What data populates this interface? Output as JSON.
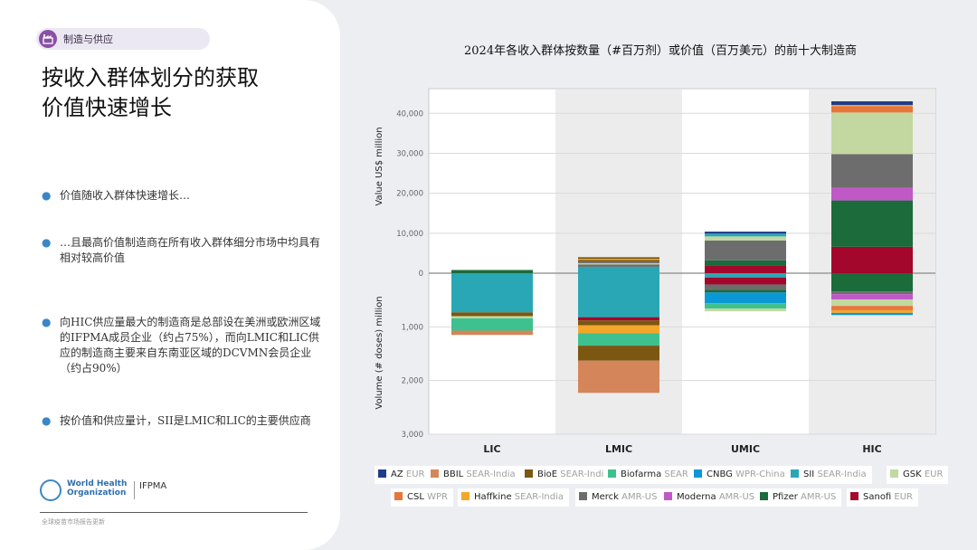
{
  "header": {
    "section_label": "制造与供应"
  },
  "title": {
    "line1": "按收入群体划分的获取",
    "line2": "价值快速增长"
  },
  "bullets": [
    "价值随收入群体快速增长…",
    "…且最高价值制造商在所有收入群体细分市场中均具有相对较高价值",
    "向HIC供应量最大的制造商是总部设在美洲或欧洲区域的IFPMA成员企业（约占75%），而向LMIC和LIC供应的制造商主要来自东南亚区域的DCVMN会员企业（约占90%）",
    "按价值和供应量计，SII是LMIC和LIC的主要供应商"
  ],
  "logos": {
    "who": "World Health Organization",
    "ifpma": "IFPMA"
  },
  "footer": {
    "text": "全球疫苗市场报告更新"
  },
  "colors": {
    "bullet_dot": "#3d86c6",
    "section_icon": "#8a4fa6",
    "zero_line": "#888888"
  },
  "chart_data": {
    "type": "bar",
    "subtype": "stacked-diverging",
    "title": "2024年各收入群体按数量（#百万剂）或价值（百万美元）的前十大制造商",
    "categories": [
      "LIC",
      "LMIC",
      "UMIC",
      "HIC"
    ],
    "value_axis": {
      "label": "Value US$ million",
      "ticks": [
        "40,000",
        "30,000",
        "20,000",
        "10,000",
        "0"
      ],
      "tick_values": [
        40000,
        30000,
        20000,
        10000,
        0
      ],
      "ylim": [
        0,
        43000
      ]
    },
    "volume_axis": {
      "label": "Volume (# doses) million",
      "ticks": [
        "1,000",
        "2,000",
        "3,000"
      ],
      "tick_values": [
        1000,
        2000,
        3000
      ],
      "ylim": [
        0,
        3000
      ]
    },
    "grid": true,
    "legend": [
      {
        "name": "AZ",
        "region": "EUR",
        "color": "#1f3d8a"
      },
      {
        "name": "BBIL",
        "region": "SEAR-India",
        "color": "#d4855a"
      },
      {
        "name": "BioE",
        "region": "SEAR-India",
        "color": "#7b5712"
      },
      {
        "name": "Biofarma",
        "region": "SEAR",
        "color": "#3ec18f"
      },
      {
        "name": "CNBG",
        "region": "WPR-China",
        "color": "#0a98d6"
      },
      {
        "name": "SII",
        "region": "SEAR-India",
        "color": "#2aa7b5"
      },
      {
        "name": "GSK",
        "region": "EUR",
        "color": "#c2d8a0"
      },
      {
        "name": "CSL",
        "region": "WPR",
        "color": "#e8763b"
      },
      {
        "name": "Haffkine",
        "region": "SEAR-India",
        "color": "#f4a62a"
      },
      {
        "name": "Merck",
        "region": "AMR-US",
        "color": "#6d6d6d"
      },
      {
        "name": "Moderna",
        "region": "AMR-US",
        "color": "#c059c6"
      },
      {
        "name": "Pfizer",
        "region": "AMR-US",
        "color": "#1b6b3b"
      },
      {
        "name": "Sanofi",
        "region": "EUR",
        "color": "#a3082c"
      }
    ],
    "value_series": {
      "LIC": [
        {
          "m": "Pfizer",
          "v": 800
        }
      ],
      "LMIC": [
        {
          "m": "SII",
          "v": 1600
        },
        {
          "m": "Merck",
          "v": 600
        },
        {
          "m": "GSK",
          "v": 300
        },
        {
          "m": "Merck",
          "v": 400
        },
        {
          "m": "BioE",
          "v": 400
        },
        {
          "m": "Haffkine",
          "v": 300
        },
        {
          "m": "BioE",
          "v": 400
        }
      ],
      "UMIC": [
        {
          "m": "Sanofi",
          "v": 2000
        },
        {
          "m": "Pfizer",
          "v": 1200
        },
        {
          "m": "Merck",
          "v": 5000
        },
        {
          "m": "GSK",
          "v": 1000
        },
        {
          "m": "SII",
          "v": 700
        },
        {
          "m": "AZ",
          "v": 500
        }
      ],
      "HIC": [
        {
          "m": "Sanofi",
          "v": 6600
        },
        {
          "m": "Pfizer",
          "v": 11600
        },
        {
          "m": "Moderna",
          "v": 3200
        },
        {
          "m": "Merck",
          "v": 8400
        },
        {
          "m": "GSK",
          "v": 10400
        },
        {
          "m": "CSL",
          "v": 1600
        },
        {
          "m": "Haffkine",
          "v": 300
        },
        {
          "m": "AZ",
          "v": 900
        }
      ]
    },
    "volume_series": {
      "LIC": [
        {
          "m": "SII",
          "v": 730
        },
        {
          "m": "BioE",
          "v": 70
        },
        {
          "m": "GSK",
          "v": 40
        },
        {
          "m": "Biofarma",
          "v": 230
        },
        {
          "m": "BBIL",
          "v": 80
        }
      ],
      "LMIC": [
        {
          "m": "SII",
          "v": 820
        },
        {
          "m": "Sanofi",
          "v": 60
        },
        {
          "m": "BioE",
          "v": 90
        },
        {
          "m": "Haffkine",
          "v": 150
        },
        {
          "m": "Biofarma",
          "v": 230
        },
        {
          "m": "BioE",
          "v": 280
        },
        {
          "m": "BBIL",
          "v": 600
        }
      ],
      "UMIC": [
        {
          "m": "SII",
          "v": 80
        },
        {
          "m": "Sanofi",
          "v": 130
        },
        {
          "m": "Merck",
          "v": 100
        },
        {
          "m": "Pfizer",
          "v": 50
        },
        {
          "m": "CNBG",
          "v": 200
        },
        {
          "m": "Biofarma",
          "v": 100
        },
        {
          "m": "GSK",
          "v": 50
        }
      ],
      "HIC": [
        {
          "m": "Pfizer",
          "v": 340
        },
        {
          "m": "Merck",
          "v": 50
        },
        {
          "m": "Moderna",
          "v": 100
        },
        {
          "m": "GSK",
          "v": 120
        },
        {
          "m": "CSL",
          "v": 80
        },
        {
          "m": "Haffkine",
          "v": 50
        },
        {
          "m": "CNBG",
          "v": 40
        }
      ]
    }
  }
}
